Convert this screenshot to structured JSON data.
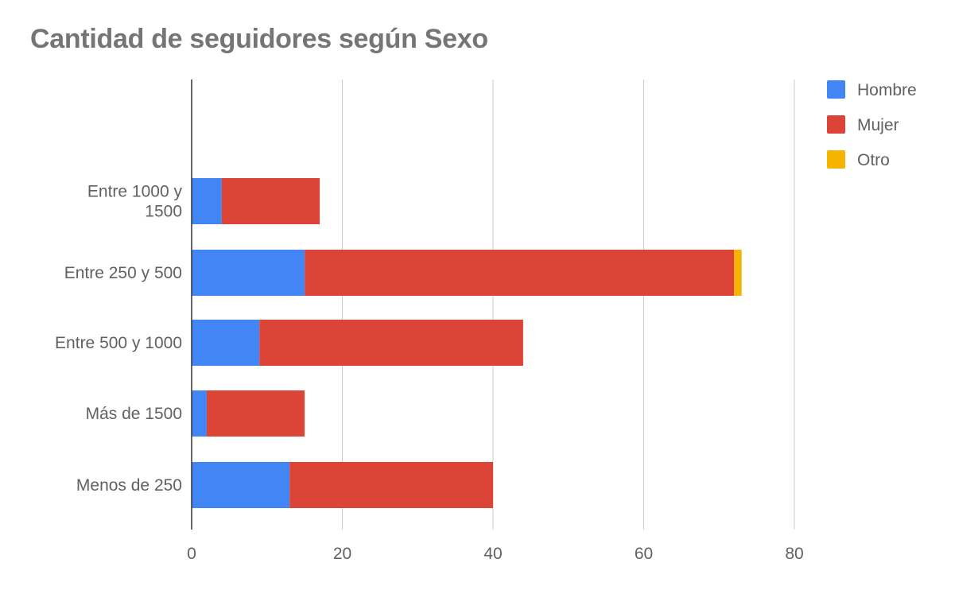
{
  "chart_data": {
    "type": "bar",
    "orientation": "horizontal",
    "stacked": true,
    "title": "Cantidad de seguidores según Sexo",
    "xlabel": "",
    "ylabel": "",
    "categories": [
      "Entre 1000 y 1500",
      "Entre 250 y 500",
      "Entre 500 y 1000",
      "Más de 1500",
      "Menos de 250"
    ],
    "category_label_lines": [
      [
        "Entre 1000 y",
        "1500"
      ],
      [
        "Entre 250 y 500"
      ],
      [
        "Entre 500 y 1000"
      ],
      [
        "Más de 1500"
      ],
      [
        "Menos de 250"
      ]
    ],
    "series": [
      {
        "name": "Hombre",
        "color": "#4285f4",
        "values": [
          4,
          15,
          9,
          2,
          13
        ]
      },
      {
        "name": "Mujer",
        "color": "#db4437",
        "values": [
          13,
          57,
          35,
          13,
          27
        ]
      },
      {
        "name": "Otro",
        "color": "#f4b400",
        "values": [
          0,
          1,
          0,
          0,
          0
        ]
      }
    ],
    "xlim": [
      0,
      80
    ],
    "xticks": [
      "0",
      "20",
      "40",
      "60",
      "80"
    ],
    "grid": true,
    "legend_position": "right"
  }
}
